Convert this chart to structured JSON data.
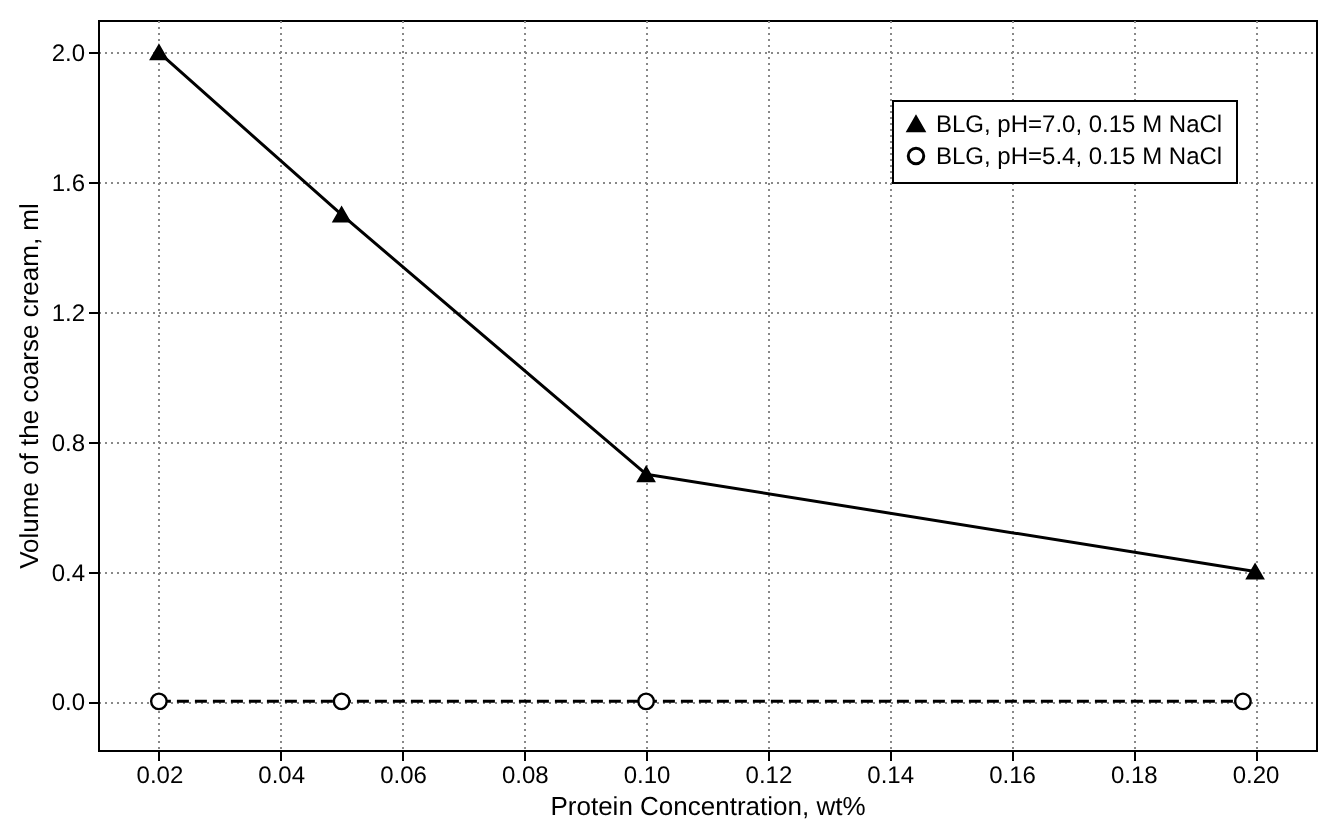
{
  "chart_data": {
    "type": "line",
    "xlabel": "Protein Concentration, wt%",
    "ylabel": "Volume of the coarse cream, ml",
    "xlim": [
      0.01,
      0.21
    ],
    "ylim": [
      -0.15,
      2.1
    ],
    "xticks": [
      0.02,
      0.04,
      0.06,
      0.08,
      {
        "value": 0.1,
        "label": "0.10"
      },
      0.12,
      0.14,
      0.16,
      0.18,
      {
        "value": 0.2,
        "label": "0.20"
      }
    ],
    "yticks": [
      {
        "value": 0,
        "label": "0.0"
      },
      0.4,
      0.8,
      1.2,
      1.6,
      {
        "value": 2,
        "label": "2.0"
      }
    ],
    "grid": true,
    "legend": "top right",
    "series": [
      {
        "name": "BLG, pH=7.0, 0.15 M NaCl",
        "color": "#000000",
        "marker": "triangle",
        "line_style": "solid",
        "x": [
          0.02,
          0.05,
          0.1,
          0.2
        ],
        "values": [
          2.0,
          1.5,
          0.7,
          0.4
        ]
      },
      {
        "name": "BLG, pH=5.4, 0.15 M NaCl",
        "color": "#000000",
        "marker": "circle",
        "line_style": "dashed",
        "x": [
          0.02,
          0.05,
          0.1,
          0.198
        ],
        "values": [
          0,
          0,
          0,
          0
        ]
      }
    ]
  }
}
